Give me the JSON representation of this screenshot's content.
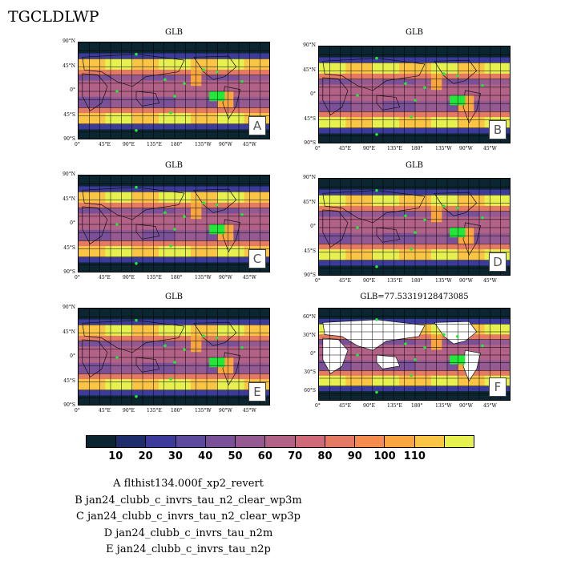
{
  "title": "TGCLDLWP",
  "panels": [
    {
      "id": "A",
      "title": "GLB",
      "label": "A",
      "type": "full"
    },
    {
      "id": "B",
      "title": "GLB",
      "label": "B",
      "type": "full"
    },
    {
      "id": "C",
      "title": "GLB",
      "label": "C",
      "type": "full"
    },
    {
      "id": "D",
      "title": "GLB",
      "label": "D",
      "type": "full"
    },
    {
      "id": "E",
      "title": "GLB",
      "label": "E",
      "type": "full"
    },
    {
      "id": "F",
      "title": "GLB=77.53319128473085",
      "label": "F",
      "type": "ocean"
    }
  ],
  "axes": {
    "lat_full": [
      "90°N",
      "45°N",
      "0°",
      "45°S",
      "90°S"
    ],
    "lat_ocean": [
      "60°N",
      "30°N",
      "0°",
      "30°S",
      "60°S"
    ],
    "lon": [
      "0°",
      "45°E",
      "90°E",
      "135°E",
      "180°",
      "135°W",
      "90°W",
      "45°W"
    ]
  },
  "colorbar": {
    "colors": [
      "#0b2631",
      "#1e2d6b",
      "#3c3b9b",
      "#5b4a9e",
      "#7a5199",
      "#965a92",
      "#b26187",
      "#cf6b78",
      "#e47a63",
      "#f38c4e",
      "#f9a640",
      "#fac544",
      "#e6f150"
    ],
    "labels": [
      "10",
      "20",
      "30",
      "40",
      "50",
      "60",
      "70",
      "80",
      "90",
      "100",
      "110"
    ]
  },
  "legend": [
    "A  flthist134.000f_xp2_revert",
    "B  jan24_clubb_c_invrs_tau_n2_clear_wp3m",
    "C  jan24_clubb_c_invrs_tau_n2_clear_wp3p",
    "D  jan24_clubb_c_invrs_tau_n2m",
    "E  jan24_clubb_c_invrs_tau_n2p"
  ]
}
